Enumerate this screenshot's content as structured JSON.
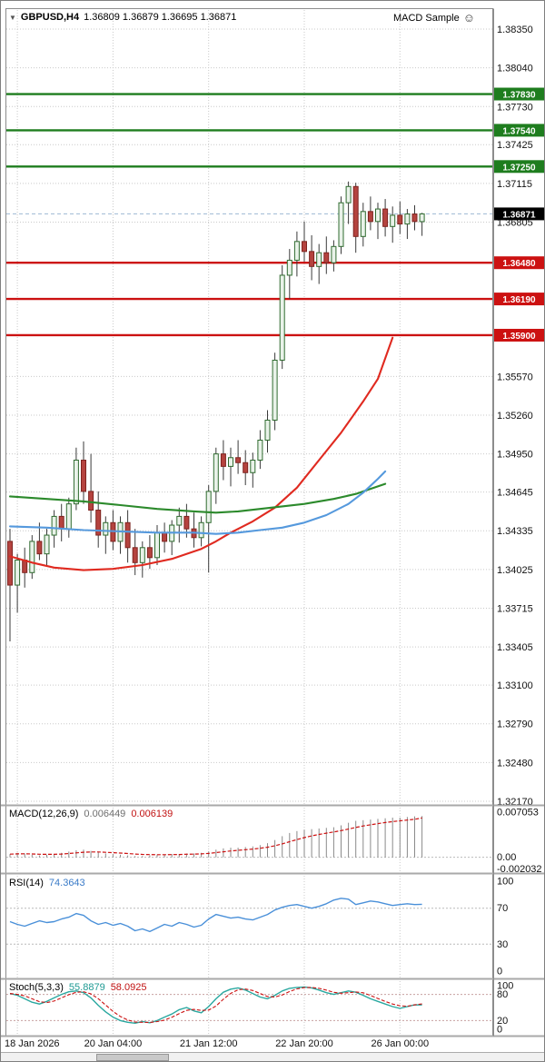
{
  "header": {
    "menu_icon": "▼",
    "symbol": "GBPUSD,H4",
    "ohlc": "1.36809 1.36879 1.36695 1.36871",
    "expert": "MACD Sample",
    "expert_icon": "☺"
  },
  "indicators": {
    "macd": {
      "label": "MACD(12,26,9)",
      "value1": "0.006449",
      "value2": "0.006139"
    },
    "rsi": {
      "label": "RSI(14)",
      "value": "74.3643"
    },
    "stoch": {
      "label": "Stoch(5,3,3)",
      "value1": "55.8879",
      "value2": "58.0925"
    }
  },
  "axis": {
    "price_ticks": [
      "1.38350",
      "1.38040",
      "1.37730",
      "1.37425",
      "1.37115",
      "1.36805",
      "1.35570",
      "1.35260",
      "1.34950",
      "1.34645",
      "1.34335",
      "1.34025",
      "1.33715",
      "1.33405",
      "1.33100",
      "1.32790",
      "1.32480",
      "1.32170"
    ],
    "dates": [
      "18 Jan 2026",
      "20 Jan 04:00",
      "21 Jan 12:00",
      "22 Jan 20:00",
      "26 Jan 00:00"
    ],
    "macd_ticks": [
      "0.007053",
      "0.00",
      "-0.002032"
    ],
    "rsi_ticks": [
      "100",
      "70",
      "30",
      "0"
    ],
    "stoch_ticks": [
      "100",
      "80",
      "20",
      "0"
    ]
  },
  "colors": {
    "grid": "#c9c9c9",
    "bull_fill": "#e9f2e9",
    "bull_stroke": "#2f6b2f",
    "bear_fill": "#b5433f",
    "bear_stroke": "#7e2420",
    "wick": "#3a3a3a",
    "ma_red": "#e02a20",
    "ma_green": "#2c8a2c",
    "ma_blue": "#5599dd",
    "resistance": "#1e7d1e",
    "support": "#cc1111",
    "price_box": "#000000",
    "bid_line": "#9db8d2",
    "macd_hist": "#8a8a8a",
    "macd_signal": "#cc1111",
    "rsi_line": "#4a90d9",
    "stoch_k": "#2aa8a0",
    "stoch_d": "#cc1111"
  },
  "chart_data": [
    {
      "type": "candlestick",
      "title": "GBPUSD,H4",
      "ylim": [
        1.3217,
        1.3835
      ],
      "x_labels": [
        "18 Jan 2026",
        "20 Jan 04:00",
        "21 Jan 12:00",
        "22 Jan 20:00",
        "26 Jan 00:00"
      ],
      "grid_bars": [
        1,
        14,
        27,
        40,
        53
      ],
      "ohlc": [
        [
          1.3425,
          1.3435,
          1.3345,
          1.339
        ],
        [
          1.339,
          1.3415,
          1.3368,
          1.341
        ],
        [
          1.341,
          1.342,
          1.3388,
          1.34
        ],
        [
          1.34,
          1.343,
          1.3395,
          1.3425
        ],
        [
          1.3425,
          1.344,
          1.341,
          1.3415
        ],
        [
          1.3415,
          1.3435,
          1.3405,
          1.343
        ],
        [
          1.343,
          1.345,
          1.342,
          1.3445
        ],
        [
          1.3445,
          1.3455,
          1.3425,
          1.3435
        ],
        [
          1.3435,
          1.346,
          1.3428,
          1.3455
        ],
        [
          1.3455,
          1.35,
          1.345,
          1.349
        ],
        [
          1.349,
          1.3505,
          1.3455,
          1.3465
        ],
        [
          1.3465,
          1.3495,
          1.344,
          1.345
        ],
        [
          1.345,
          1.3465,
          1.342,
          1.343
        ],
        [
          1.343,
          1.3445,
          1.3415,
          1.344
        ],
        [
          1.344,
          1.345,
          1.3418,
          1.3425
        ],
        [
          1.3425,
          1.3445,
          1.3415,
          1.344
        ],
        [
          1.344,
          1.345,
          1.3408,
          1.342
        ],
        [
          1.342,
          1.3435,
          1.3398,
          1.3408
        ],
        [
          1.3408,
          1.3425,
          1.3396,
          1.342
        ],
        [
          1.342,
          1.343,
          1.3403,
          1.3412
        ],
        [
          1.3412,
          1.3438,
          1.3406,
          1.3432
        ],
        [
          1.3432,
          1.344,
          1.3416,
          1.3425
        ],
        [
          1.3425,
          1.3442,
          1.3414,
          1.3438
        ],
        [
          1.3438,
          1.3452,
          1.3424,
          1.3445
        ],
        [
          1.3445,
          1.3455,
          1.3428,
          1.3435
        ],
        [
          1.3435,
          1.3448,
          1.342,
          1.3428
        ],
        [
          1.3428,
          1.3445,
          1.3421,
          1.344
        ],
        [
          1.344,
          1.347,
          1.34,
          1.3465
        ],
        [
          1.3465,
          1.35,
          1.3455,
          1.3495
        ],
        [
          1.3495,
          1.3506,
          1.3474,
          1.3485
        ],
        [
          1.3485,
          1.35,
          1.3469,
          1.3492
        ],
        [
          1.3492,
          1.3506,
          1.3479,
          1.3488
        ],
        [
          1.3488,
          1.3498,
          1.347,
          1.348
        ],
        [
          1.348,
          1.3496,
          1.3468,
          1.349
        ],
        [
          1.349,
          1.3514,
          1.3483,
          1.3506
        ],
        [
          1.3506,
          1.353,
          1.3496,
          1.3522
        ],
        [
          1.3522,
          1.3576,
          1.3514,
          1.357
        ],
        [
          1.357,
          1.3646,
          1.3563,
          1.3638
        ],
        [
          1.3638,
          1.3659,
          1.3619,
          1.365
        ],
        [
          1.365,
          1.3673,
          1.3637,
          1.3665
        ],
        [
          1.3665,
          1.3681,
          1.3649,
          1.3657
        ],
        [
          1.3657,
          1.367,
          1.3634,
          1.3645
        ],
        [
          1.3645,
          1.3663,
          1.3631,
          1.3656
        ],
        [
          1.3656,
          1.3669,
          1.3639,
          1.3648
        ],
        [
          1.3648,
          1.3666,
          1.3641,
          1.3661
        ],
        [
          1.3661,
          1.3701,
          1.3655,
          1.3696
        ],
        [
          1.3696,
          1.3713,
          1.3679,
          1.3709
        ],
        [
          1.3709,
          1.3712,
          1.3656,
          1.3669
        ],
        [
          1.3669,
          1.3696,
          1.3661,
          1.3689
        ],
        [
          1.3689,
          1.3701,
          1.3674,
          1.3681
        ],
        [
          1.3681,
          1.3696,
          1.3667,
          1.3691
        ],
        [
          1.3691,
          1.3699,
          1.3669,
          1.3677
        ],
        [
          1.3677,
          1.3693,
          1.3664,
          1.3686
        ],
        [
          1.3686,
          1.3697,
          1.3671,
          1.3679
        ],
        [
          1.3679,
          1.3691,
          1.3667,
          1.3687
        ],
        [
          1.3687,
          1.3694,
          1.3674,
          1.3681
        ],
        [
          1.36809,
          1.36879,
          1.36695,
          1.36871
        ]
      ],
      "ma": [
        {
          "name": "fast-red",
          "color_key": "ma_red",
          "points": [
            [
              0,
              1.3413
            ],
            [
              3,
              1.3408
            ],
            [
              6,
              1.3404
            ],
            [
              10,
              1.3402
            ],
            [
              14,
              1.3403
            ],
            [
              18,
              1.3406
            ],
            [
              22,
              1.3411
            ],
            [
              26,
              1.3419
            ],
            [
              28,
              1.3425
            ],
            [
              30,
              1.3432
            ],
            [
              33,
              1.3441
            ],
            [
              36,
              1.3452
            ],
            [
              39,
              1.3468
            ],
            [
              42,
              1.349
            ],
            [
              45,
              1.3512
            ],
            [
              48,
              1.3537
            ],
            [
              50,
              1.3555
            ],
            [
              52,
              1.3588
            ]
          ]
        },
        {
          "name": "slow-green",
          "color_key": "ma_green",
          "points": [
            [
              0,
              1.3461
            ],
            [
              5,
              1.3459
            ],
            [
              10,
              1.3457
            ],
            [
              15,
              1.3454
            ],
            [
              20,
              1.3451
            ],
            [
              25,
              1.3449
            ],
            [
              28,
              1.3448
            ],
            [
              31,
              1.3449
            ],
            [
              34,
              1.3451
            ],
            [
              37,
              1.3453
            ],
            [
              40,
              1.3455
            ],
            [
              44,
              1.3459
            ],
            [
              47,
              1.3463
            ],
            [
              49,
              1.3467
            ],
            [
              51,
              1.3471
            ]
          ]
        },
        {
          "name": "mid-blue",
          "color_key": "ma_blue",
          "points": [
            [
              0,
              1.3437
            ],
            [
              5,
              1.3436
            ],
            [
              10,
              1.3434
            ],
            [
              15,
              1.3433
            ],
            [
              20,
              1.3432
            ],
            [
              25,
              1.3432
            ],
            [
              28,
              1.3431
            ],
            [
              31,
              1.3432
            ],
            [
              34,
              1.3434
            ],
            [
              37,
              1.3436
            ],
            [
              40,
              1.344
            ],
            [
              43,
              1.3446
            ],
            [
              46,
              1.3455
            ],
            [
              48,
              1.3464
            ],
            [
              50,
              1.3475
            ],
            [
              51,
              1.3481
            ]
          ]
        }
      ],
      "hlines": [
        {
          "value": 1.3783,
          "label": "1.37830",
          "type": "resistance"
        },
        {
          "value": 1.3754,
          "label": "1.37540",
          "type": "resistance"
        },
        {
          "value": 1.3725,
          "label": "1.37250",
          "type": "resistance"
        },
        {
          "value": 1.3648,
          "label": "1.36480",
          "type": "support"
        },
        {
          "value": 1.3619,
          "label": "1.36190",
          "type": "support"
        },
        {
          "value": 1.359,
          "label": "1.35900",
          "type": "support"
        }
      ],
      "current_price": {
        "value": 1.36871,
        "label": "1.36871"
      }
    },
    {
      "type": "bar",
      "name": "MACD(12,26,9)",
      "ylim": [
        -0.002032,
        0.007053
      ],
      "values": [
        0.0005,
        0.0007,
        0.0006,
        0.0004,
        0.0003,
        0.0004,
        0.0005,
        0.0007,
        0.0009,
        0.0011,
        0.0012,
        0.001,
        0.0008,
        0.0006,
        0.0005,
        0.0004,
        0.0003,
        0.0002,
        0.0002,
        0.0003,
        0.0004,
        0.0004,
        0.0005,
        0.0005,
        0.0006,
        0.0006,
        0.0007,
        0.0009,
        0.0012,
        0.0014,
        0.0015,
        0.0015,
        0.0016,
        0.0017,
        0.0019,
        0.0022,
        0.0027,
        0.0033,
        0.0038,
        0.0041,
        0.0043,
        0.0044,
        0.0045,
        0.0046,
        0.0047,
        0.005,
        0.0054,
        0.0057,
        0.0058,
        0.0059,
        0.006,
        0.0061,
        0.0062,
        0.0062,
        0.0063,
        0.0064,
        0.006449
      ],
      "signal": [
        0.0005,
        0.00054,
        0.000552,
        0.000522,
        0.000477,
        0.000462,
        0.000469,
        0.000516,
        0.000592,
        0.000694,
        0.000795,
        0.000836,
        0.000829,
        0.000783,
        0.000727,
        0.000661,
        0.000589,
        0.000511,
        0.000449,
        0.000419,
        0.000415,
        0.000412,
        0.00043,
        0.000444,
        0.000475,
        0.0005,
        0.00054,
        0.000612,
        0.00073,
        0.000864,
        0.000991,
        0.001093,
        0.001194,
        0.001295,
        0.001416,
        0.001573,
        0.001798,
        0.002099,
        0.002439,
        0.002771,
        0.003077,
        0.003341,
        0.003573,
        0.003778,
        0.003963,
        0.00417,
        0.004416,
        0.004673,
        0.004894,
        0.005075,
        0.00526,
        0.005428,
        0.005582,
        0.005706,
        0.005825,
        0.005945,
        0.006139
      ]
    },
    {
      "type": "line",
      "name": "RSI(14)",
      "ylim": [
        0,
        100
      ],
      "levels": [
        70,
        30
      ],
      "values": [
        55,
        52,
        50,
        53,
        56,
        54,
        55,
        58,
        60,
        64,
        62,
        56,
        52,
        54,
        51,
        53,
        50,
        45,
        47,
        44,
        48,
        52,
        50,
        54,
        52,
        49,
        51,
        58,
        63,
        61,
        59,
        60,
        58,
        57,
        60,
        63,
        68,
        71,
        73,
        74,
        72,
        70,
        72,
        75,
        79,
        81,
        80,
        74,
        76,
        78,
        77,
        75,
        73,
        74,
        75,
        74,
        74.36
      ]
    },
    {
      "type": "line",
      "name": "Stochastic(5,3,3)",
      "ylim": [
        0,
        100
      ],
      "levels": [
        80,
        20
      ],
      "k": [
        82,
        78,
        70,
        62,
        58,
        64,
        72,
        80,
        86,
        88,
        84,
        72,
        55,
        40,
        28,
        20,
        16,
        14,
        18,
        15,
        20,
        28,
        35,
        45,
        50,
        42,
        38,
        52,
        70,
        85,
        92,
        95,
        90,
        82,
        74,
        70,
        78,
        88,
        94,
        96,
        97,
        95,
        90,
        84,
        80,
        84,
        88,
        85,
        78,
        70,
        64,
        58,
        52,
        48,
        52,
        56,
        55.89
      ],
      "d": [
        82,
        80,
        76.7,
        70,
        63.3,
        61.3,
        64.7,
        72,
        79.3,
        84.7,
        86,
        81.3,
        70.3,
        55.7,
        41,
        29.3,
        21.3,
        16.7,
        16,
        15.7,
        17.7,
        21,
        27.7,
        36,
        43.3,
        45.7,
        43.3,
        44,
        53.3,
        69,
        82.3,
        90.7,
        92.3,
        89,
        82,
        75.3,
        74,
        78.7,
        86.7,
        92.7,
        95.7,
        96,
        94,
        89.7,
        84.7,
        82.7,
        84,
        85.7,
        83.7,
        77.7,
        70.7,
        64,
        58,
        54,
        53,
        56,
        58.09
      ]
    }
  ]
}
